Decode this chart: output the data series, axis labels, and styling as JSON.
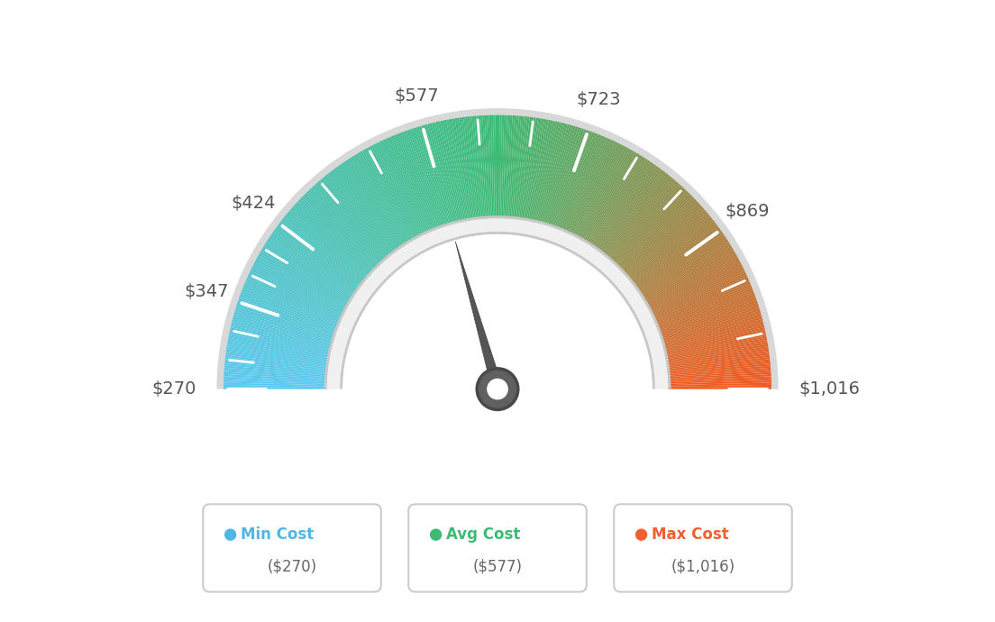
{
  "min_val": 270,
  "max_val": 1016,
  "avg_val": 577,
  "needle_value": 577,
  "tick_labels": [
    "$270",
    "$347",
    "$424",
    "$577",
    "$723",
    "$869",
    "$1,016"
  ],
  "tick_values": [
    270,
    347,
    424,
    577,
    723,
    869,
    1016
  ],
  "color_min": "#5bc8f0",
  "color_mid": "#3dba74",
  "color_max": "#f05a20",
  "legend": [
    {
      "label": "Min Cost",
      "value": "($270)",
      "color": "#4db8e8"
    },
    {
      "label": "Avg Cost",
      "value": "($577)",
      "color": "#3dba74"
    },
    {
      "label": "Max Cost",
      "value": "($1,016)",
      "color": "#f06030"
    }
  ],
  "background_color": "#ffffff"
}
